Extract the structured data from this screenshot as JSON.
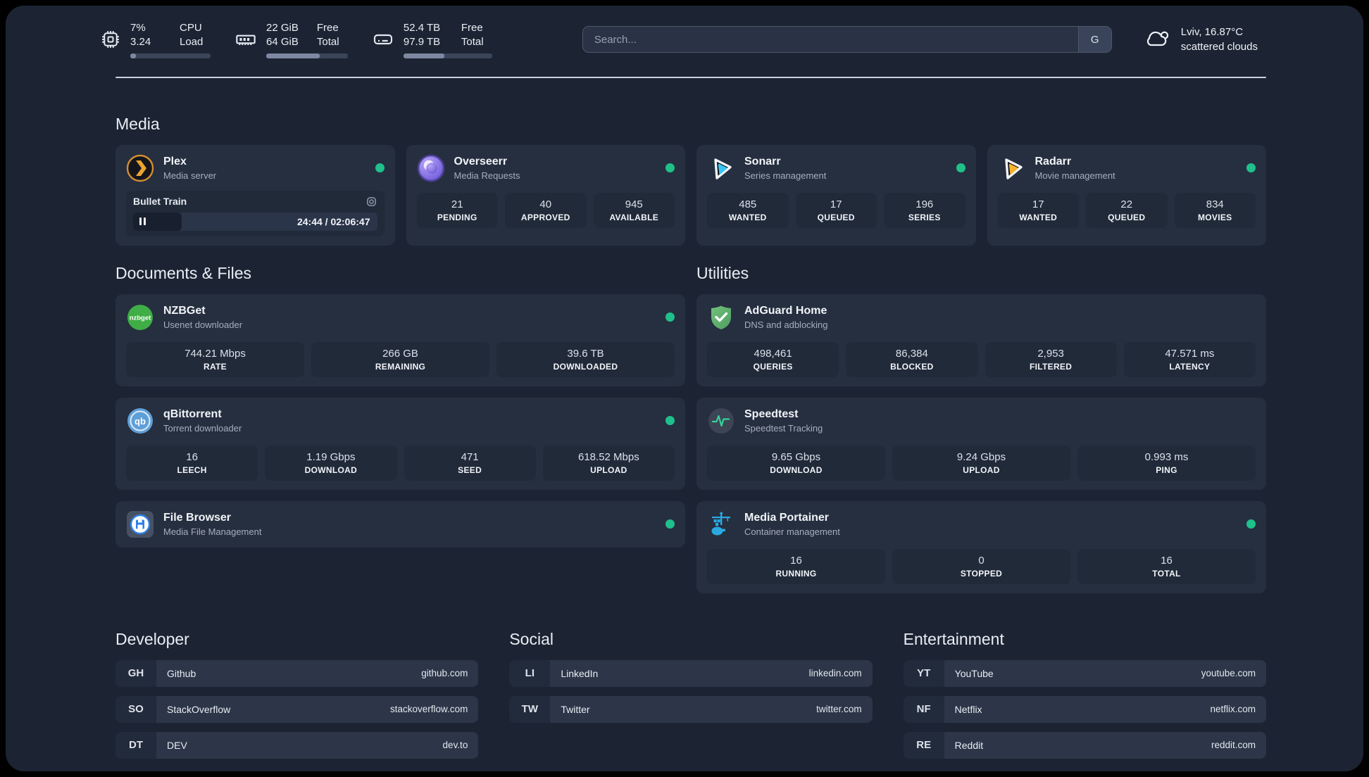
{
  "colors": {
    "background": "#1c2433",
    "card": "#262f3f",
    "stat_box": "#212a39",
    "status_online": "#1fc08a",
    "plex_orange": "#e9a431",
    "sonarr_cyan": "#39c6f4",
    "radarr_yellow": "#f7b32b",
    "adguard_green": "#5fae6c",
    "portainer_blue": "#2aa9e0",
    "divider": "#ccd2dc"
  },
  "icons": {
    "cpu-icon": "chip",
    "ram-icon": "memory-stick",
    "disk-icon": "hard-drive",
    "search-engine-button": "G",
    "weather-icon": "scattered-clouds",
    "settings-icon": "squircle-gear",
    "pause-icon": "pause-bars",
    "status-dot": "green-circle",
    "plex-icon": "plex-chevron",
    "overseerr-icon": "purple-eye",
    "sonarr-icon": "play-triangle-cyan",
    "radarr-icon": "play-triangle-yellow",
    "nzbget-icon": "green-nzbget",
    "qbittorrent-icon": "blue-qb",
    "filebrowser-icon": "floppy-disk",
    "adguard-icon": "shield-check",
    "speedtest-icon": "pulse-line",
    "portainer-icon": "crane-containers"
  },
  "topbar": {
    "cpu": {
      "line1": "7%",
      "line2": "3.24",
      "label1": "CPU",
      "label2": "Load",
      "progress_pct": 7
    },
    "ram": {
      "line1": "22 GiB",
      "line2": "64 GiB",
      "label1": "Free",
      "label2": "Total",
      "progress_pct": 66
    },
    "disk": {
      "line1": "52.4 TB",
      "line2": "97.9 TB",
      "label1": "Free",
      "label2": "Total",
      "progress_pct": 46
    },
    "search": {
      "placeholder": "Search...",
      "engine_label": "G"
    },
    "weather": {
      "location": "Lviv, 16.87°C",
      "condition": "scattered clouds"
    }
  },
  "media": {
    "title": "Media",
    "plex": {
      "name": "Plex",
      "desc": "Media server",
      "online": true,
      "player": {
        "title": "Bullet Train",
        "time": "24:44 / 02:06:47",
        "progress_pct": 20
      }
    },
    "overseerr": {
      "name": "Overseerr",
      "desc": "Media Requests",
      "online": true,
      "stats": [
        {
          "value": "21",
          "label": "PENDING"
        },
        {
          "value": "40",
          "label": "APPROVED"
        },
        {
          "value": "945",
          "label": "AVAILABLE"
        }
      ]
    },
    "sonarr": {
      "name": "Sonarr",
      "desc": "Series management",
      "online": true,
      "stats": [
        {
          "value": "485",
          "label": "WANTED"
        },
        {
          "value": "17",
          "label": "QUEUED"
        },
        {
          "value": "196",
          "label": "SERIES"
        }
      ]
    },
    "radarr": {
      "name": "Radarr",
      "desc": "Movie management",
      "online": true,
      "stats": [
        {
          "value": "17",
          "label": "WANTED"
        },
        {
          "value": "22",
          "label": "QUEUED"
        },
        {
          "value": "834",
          "label": "MOVIES"
        }
      ]
    }
  },
  "documents": {
    "title": "Documents & Files",
    "nzbget": {
      "name": "NZBGet",
      "desc": "Usenet downloader",
      "online": true,
      "stats": [
        {
          "value": "744.21 Mbps",
          "label": "RATE"
        },
        {
          "value": "266 GB",
          "label": "REMAINING"
        },
        {
          "value": "39.6 TB",
          "label": "DOWNLOADED"
        }
      ]
    },
    "qbittorrent": {
      "name": "qBittorrent",
      "desc": "Torrent downloader",
      "online": true,
      "stats": [
        {
          "value": "16",
          "label": "LEECH"
        },
        {
          "value": "1.19 Gbps",
          "label": "DOWNLOAD"
        },
        {
          "value": "471",
          "label": "SEED"
        },
        {
          "value": "618.52 Mbps",
          "label": "UPLOAD"
        }
      ]
    },
    "filebrowser": {
      "name": "File Browser",
      "desc": "Media File Management",
      "online": true
    }
  },
  "utilities": {
    "title": "Utilities",
    "adguard": {
      "name": "AdGuard Home",
      "desc": "DNS and adblocking",
      "stats": [
        {
          "value": "498,461",
          "label": "QUERIES"
        },
        {
          "value": "86,384",
          "label": "BLOCKED"
        },
        {
          "value": "2,953",
          "label": "FILTERED"
        },
        {
          "value": "47.571 ms",
          "label": "LATENCY"
        }
      ]
    },
    "speedtest": {
      "name": "Speedtest",
      "desc": "Speedtest Tracking",
      "stats": [
        {
          "value": "9.65 Gbps",
          "label": "DOWNLOAD"
        },
        {
          "value": "9.24 Gbps",
          "label": "UPLOAD"
        },
        {
          "value": "0.993 ms",
          "label": "PING"
        }
      ]
    },
    "portainer": {
      "name": "Media Portainer",
      "desc": "Container management",
      "online": true,
      "stats": [
        {
          "value": "16",
          "label": "RUNNING"
        },
        {
          "value": "0",
          "label": "STOPPED"
        },
        {
          "value": "16",
          "label": "TOTAL"
        }
      ]
    }
  },
  "bookmarks": {
    "developer": {
      "title": "Developer",
      "items": [
        {
          "abbr": "GH",
          "name": "Github",
          "url": "github.com"
        },
        {
          "abbr": "SO",
          "name": "StackOverflow",
          "url": "stackoverflow.com"
        },
        {
          "abbr": "DT",
          "name": "DEV",
          "url": "dev.to"
        }
      ]
    },
    "social": {
      "title": "Social",
      "items": [
        {
          "abbr": "LI",
          "name": "LinkedIn",
          "url": "linkedin.com"
        },
        {
          "abbr": "TW",
          "name": "Twitter",
          "url": "twitter.com"
        }
      ]
    },
    "entertainment": {
      "title": "Entertainment",
      "items": [
        {
          "abbr": "YT",
          "name": "YouTube",
          "url": "youtube.com"
        },
        {
          "abbr": "NF",
          "name": "Netflix",
          "url": "netflix.com"
        },
        {
          "abbr": "RE",
          "name": "Reddit",
          "url": "reddit.com"
        }
      ]
    }
  }
}
